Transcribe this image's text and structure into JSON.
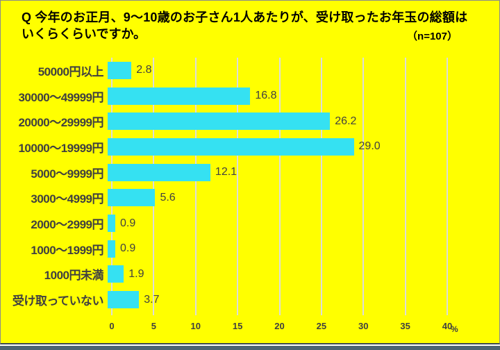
{
  "title": {
    "line1": "Q 今年のお正月、9～10歳のお子さん1人あたりが、受け取ったお年玉の総額は",
    "line2": "いくらくらいですか。",
    "sample": "（n=107）"
  },
  "chart_data": {
    "type": "bar",
    "orientation": "horizontal",
    "title": "今年のお正月、9～10歳のお子さん1人あたりが、受け取ったお年玉の総額",
    "categories": [
      "50000円以上",
      "30000～49999円",
      "20000～29999円",
      "10000～19999円",
      "5000～9999円",
      "3000～4999円",
      "2000～2999円",
      "1000～1999円",
      "1000円未満",
      "受け取っていない"
    ],
    "values": [
      2.8,
      16.8,
      26.2,
      29.0,
      12.1,
      5.6,
      0.9,
      0.9,
      1.9,
      3.7
    ],
    "value_labels": [
      "2.8",
      "16.8",
      "26.2",
      "29.0",
      "12.1",
      "5.6",
      "0.9",
      "0.9",
      "1.9",
      "3.7"
    ],
    "xlabel": "%",
    "ylabel": "",
    "xlim": [
      0,
      40
    ],
    "x_ticks": [
      0,
      5,
      10,
      15,
      20,
      25,
      30,
      35,
      40
    ],
    "x_unit": "%",
    "grid": true,
    "legend": "none",
    "colors": {
      "background": "#FFFF00",
      "bar": "#35E1F2",
      "label_text": "#404040",
      "title_text": "#000000",
      "gridline": "#DCDCDC",
      "bottom_strip": "#4D6472"
    }
  }
}
